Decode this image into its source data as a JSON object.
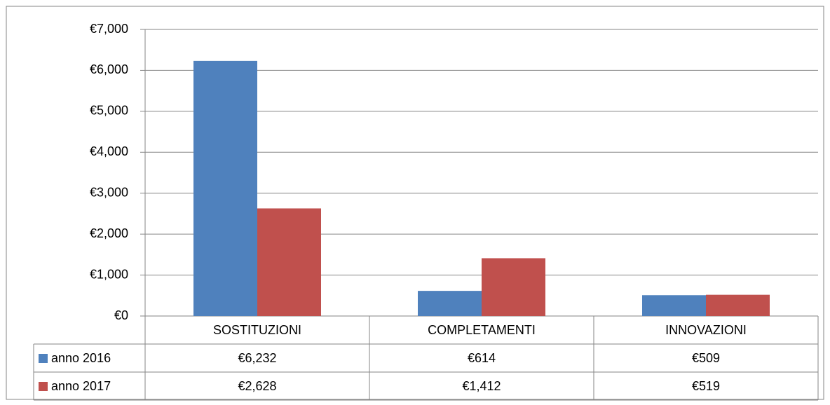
{
  "chart_data": {
    "type": "bar",
    "categories": [
      "SOSTITUZIONI",
      "COMPLETAMENTI",
      "INNOVAZIONI"
    ],
    "series": [
      {
        "name": "anno 2016",
        "color": "#4f81bd",
        "values": [
          6232,
          614,
          509
        ],
        "value_labels": [
          "€6,232",
          "€614",
          "€509"
        ]
      },
      {
        "name": "anno 2017",
        "color": "#c0504d",
        "values": [
          2628,
          1412,
          519
        ],
        "value_labels": [
          "€2,628",
          "€1,412",
          "€519"
        ]
      }
    ],
    "ylim": [
      0,
      7000
    ],
    "yticks": [
      {
        "value": 0,
        "label": "€0"
      },
      {
        "value": 1000,
        "label": "€1,000"
      },
      {
        "value": 2000,
        "label": "€2,000"
      },
      {
        "value": 3000,
        "label": "€3,000"
      },
      {
        "value": 4000,
        "label": "€4,000"
      },
      {
        "value": 5000,
        "label": "€5,000"
      },
      {
        "value": 6000,
        "label": "€6,000"
      },
      {
        "value": 7000,
        "label": "€7,000"
      }
    ],
    "grid": true
  }
}
